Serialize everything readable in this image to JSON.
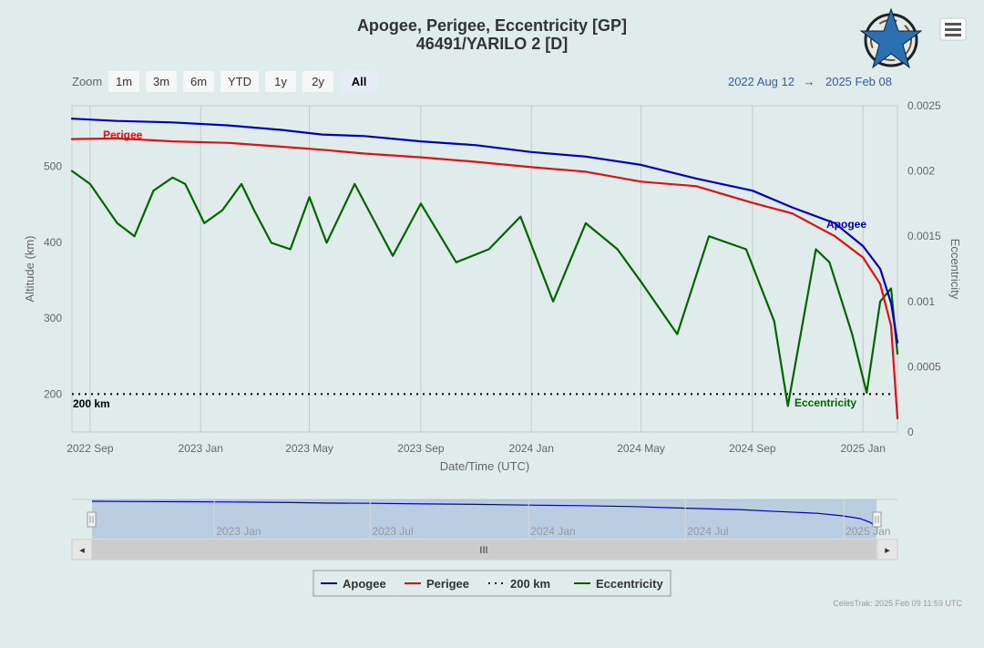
{
  "title": "Apogee, Perigee, Eccentricity [GP]",
  "subtitle": "46491/YARILO 2 [D]",
  "zoom": {
    "label": "Zoom",
    "buttons": [
      "1m",
      "3m",
      "6m",
      "YTD",
      "1y",
      "2y",
      "All"
    ],
    "active": "All"
  },
  "range": {
    "from": "2022 Aug 12",
    "arrow": "→",
    "to": "2025 Feb 08"
  },
  "menu_icon": "hamburger-menu-icon",
  "logo_icon": "celestrak-star-logo",
  "credit": "CelesTrak: 2025 Feb 09 11:59 UTC",
  "navigator": {
    "labels": [
      "2023 Jan",
      "2023 Jul",
      "2024 Jan",
      "2024 Jul",
      "2025 Jan"
    ],
    "handle_label": "III",
    "left_arrow": "◂",
    "right_arrow": "▸"
  },
  "legend": [
    {
      "name": "Apogee",
      "color": "#0000c0",
      "style": "solid"
    },
    {
      "name": "Perigee",
      "color": "#e01010",
      "style": "solid"
    },
    {
      "name": "200 km",
      "color": "#000000",
      "style": "dotted"
    },
    {
      "name": "Eccentricity",
      "color": "#006600",
      "style": "solid"
    }
  ],
  "chart_data": {
    "type": "line",
    "xlabel": "Date/Time (UTC)",
    "ylabel": "Altitude (km)",
    "y2label": "Eccentricity",
    "xlim": [
      "2022-08-12",
      "2025-02-08"
    ],
    "x_ticks": [
      "2022 Sep",
      "2023 Jan",
      "2023 May",
      "2023 Sep",
      "2024 Jan",
      "2024 May",
      "2024 Sep",
      "2025 Jan"
    ],
    "ylim": [
      150,
      580
    ],
    "y_ticks": [
      "200",
      "300",
      "400",
      "500"
    ],
    "y2lim": [
      0,
      0.0025
    ],
    "y2_ticks": [
      "0",
      "0.0005",
      "0.001",
      "0.0015",
      "0.002",
      "0.0025"
    ],
    "grid": true,
    "series": [
      {
        "name": "Apogee",
        "color": "#0000c0",
        "axis": "left",
        "x": [
          "2022-08-12",
          "2022-10-01",
          "2022-12-01",
          "2023-02-01",
          "2023-04-01",
          "2023-05-15",
          "2023-07-01",
          "2023-09-01",
          "2023-11-01",
          "2024-01-01",
          "2024-03-01",
          "2024-05-01",
          "2024-07-01",
          "2024-09-01",
          "2024-10-15",
          "2024-12-01",
          "2025-01-01",
          "2025-01-20",
          "2025-02-01",
          "2025-02-08"
        ],
        "values": [
          563,
          560,
          558,
          554,
          548,
          542,
          540,
          533,
          528,
          519,
          513,
          502,
          484,
          468,
          446,
          425,
          395,
          365,
          320,
          268
        ]
      },
      {
        "name": "Perigee",
        "color": "#e01010",
        "axis": "left",
        "x": [
          "2022-08-12",
          "2022-10-01",
          "2022-12-01",
          "2023-02-01",
          "2023-04-01",
          "2023-05-15",
          "2023-07-01",
          "2023-09-01",
          "2023-11-01",
          "2024-01-01",
          "2024-03-01",
          "2024-05-01",
          "2024-07-01",
          "2024-09-01",
          "2024-10-15",
          "2024-12-01",
          "2025-01-01",
          "2025-01-20",
          "2025-02-01",
          "2025-02-08"
        ],
        "values": [
          536,
          537,
          533,
          531,
          526,
          522,
          517,
          512,
          506,
          499,
          493,
          480,
          474,
          452,
          438,
          408,
          380,
          345,
          290,
          168
        ]
      },
      {
        "name": "200 km",
        "color": "#000000",
        "axis": "left",
        "style": "dotted",
        "x": [
          "2022-08-12",
          "2025-02-08"
        ],
        "values": [
          200,
          200
        ]
      },
      {
        "name": "Eccentricity",
        "color": "#006600",
        "axis": "right",
        "x": [
          "2022-08-12",
          "2022-09-01",
          "2022-10-01",
          "2022-10-20",
          "2022-11-10",
          "2022-12-01",
          "2022-12-15",
          "2023-01-05",
          "2023-01-25",
          "2023-02-15",
          "2023-03-01",
          "2023-03-20",
          "2023-04-10",
          "2023-05-01",
          "2023-05-20",
          "2023-06-20",
          "2023-08-01",
          "2023-09-01",
          "2023-10-10",
          "2023-11-15",
          "2023-12-20",
          "2024-01-25",
          "2024-03-01",
          "2024-04-05",
          "2024-05-01",
          "2024-06-10",
          "2024-07-15",
          "2024-08-25",
          "2024-09-25",
          "2024-10-10",
          "2024-11-10",
          "2024-11-25",
          "2024-12-20",
          "2025-01-05",
          "2025-01-20",
          "2025-02-01",
          "2025-02-08"
        ],
        "values": [
          0.002,
          0.0019,
          0.0016,
          0.0015,
          0.00185,
          0.00195,
          0.0019,
          0.0016,
          0.0017,
          0.0019,
          0.0017,
          0.00145,
          0.0014,
          0.0018,
          0.00145,
          0.0019,
          0.00135,
          0.00175,
          0.0013,
          0.0014,
          0.00165,
          0.001,
          0.0016,
          0.0014,
          0.00115,
          0.00075,
          0.0015,
          0.0014,
          0.00085,
          0.0002,
          0.0014,
          0.0013,
          0.00075,
          0.0003,
          0.001,
          0.0011,
          0.0006
        ]
      }
    ],
    "annotations": [
      {
        "text": "Perigee",
        "color": "#e01010"
      },
      {
        "text": "Apogee",
        "color": "#0000c0"
      },
      {
        "text": "Eccentricity",
        "color": "#006600"
      },
      {
        "text": "200 km",
        "color": "#000000"
      }
    ]
  }
}
